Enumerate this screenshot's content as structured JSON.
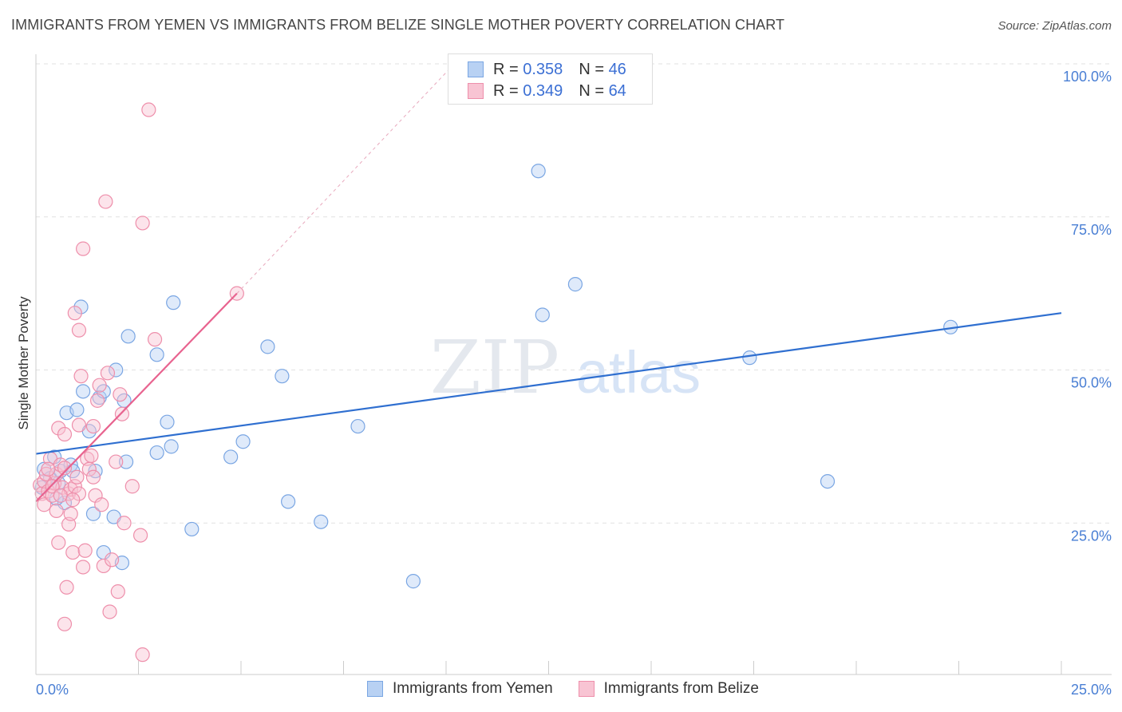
{
  "title": "IMMIGRANTS FROM YEMEN VS IMMIGRANTS FROM BELIZE SINGLE MOTHER POVERTY CORRELATION CHART",
  "source": "Source: ZipAtlas.com",
  "watermark": {
    "zip": "ZIP",
    "atlas": "atlas"
  },
  "legend": {
    "r_label": "R =",
    "n_label": "N =",
    "rows": [
      {
        "r": "0.358",
        "n": "46",
        "fill": "#b8d1f3",
        "stroke": "#7aa6e3"
      },
      {
        "r": "0.349",
        "n": "64",
        "fill": "#f8c4d3",
        "stroke": "#ee8fab"
      }
    ]
  },
  "bottom_legend": [
    {
      "label": "Immigrants from Yemen",
      "fill": "#b8d1f3",
      "stroke": "#7aa6e3"
    },
    {
      "label": "Immigrants from Belize",
      "fill": "#f8c4d3",
      "stroke": "#ee8fab"
    }
  ],
  "chart_data": {
    "type": "scatter",
    "title": "IMMIGRANTS FROM YEMEN VS IMMIGRANTS FROM BELIZE SINGLE MOTHER POVERTY CORRELATION CHART",
    "xlabel": "",
    "ylabel": "Single Mother Poverty",
    "xlim": [
      0,
      25
    ],
    "ylim": [
      0,
      100
    ],
    "x_tick_labels": [
      "0.0%",
      "25.0%"
    ],
    "y_tick_labels": [
      "25.0%",
      "50.0%",
      "75.0%",
      "100.0%"
    ],
    "y_tick_values": [
      25,
      50,
      75,
      100
    ],
    "colors": {
      "yemen": "#2f6fd0",
      "belize": "#e8638f",
      "axis_label": "#4a7fd4"
    },
    "series": [
      {
        "name": "Immigrants from Yemen",
        "color": "#7aa6e3",
        "fill": "#b8d1f3",
        "trend": {
          "x": [
            0,
            25
          ],
          "y": [
            36.3,
            59.3
          ],
          "color": "#2f6fd0"
        },
        "points": [
          [
            0.2,
            33.8
          ],
          [
            0.35,
            32.3
          ],
          [
            0.45,
            35.8
          ],
          [
            0.55,
            31.5
          ],
          [
            0.6,
            33.5
          ],
          [
            0.7,
            28.3
          ],
          [
            0.75,
            43.0
          ],
          [
            0.85,
            34.5
          ],
          [
            0.9,
            33.5
          ],
          [
            1.0,
            43.5
          ],
          [
            1.1,
            60.3
          ],
          [
            1.15,
            46.5
          ],
          [
            1.3,
            40.0
          ],
          [
            1.4,
            26.5
          ],
          [
            1.45,
            33.5
          ],
          [
            1.55,
            45.5
          ],
          [
            1.65,
            46.5
          ],
          [
            1.65,
            20.2
          ],
          [
            1.9,
            26.0
          ],
          [
            1.95,
            50.0
          ],
          [
            2.1,
            18.5
          ],
          [
            2.15,
            45.0
          ],
          [
            2.2,
            35.0
          ],
          [
            2.25,
            55.5
          ],
          [
            2.95,
            52.5
          ],
          [
            2.95,
            36.5
          ],
          [
            3.2,
            41.5
          ],
          [
            3.3,
            37.5
          ],
          [
            3.35,
            61.0
          ],
          [
            3.8,
            24.0
          ],
          [
            4.75,
            35.8
          ],
          [
            5.05,
            38.3
          ],
          [
            5.65,
            53.8
          ],
          [
            6.0,
            49.0
          ],
          [
            6.15,
            28.5
          ],
          [
            6.95,
            25.2
          ],
          [
            7.85,
            40.8
          ],
          [
            9.2,
            15.5
          ],
          [
            12.25,
            82.5
          ],
          [
            12.35,
            59.0
          ],
          [
            13.15,
            64.0
          ],
          [
            17.4,
            52.0
          ],
          [
            19.3,
            31.8
          ],
          [
            22.3,
            57.0
          ],
          [
            0.15,
            30.8
          ],
          [
            0.5,
            29.0
          ]
        ]
      },
      {
        "name": "Immigrants from Belize",
        "color": "#ee8fab",
        "fill": "#f8c4d3",
        "trend": {
          "x": [
            0,
            4.9
          ],
          "y": [
            28.5,
            62.5
          ],
          "color": "#e8638f"
        },
        "trend_dash": {
          "x": [
            4.9,
            10.2
          ],
          "y": [
            62.5,
            100.0
          ]
        },
        "points": [
          [
            0.1,
            31.2
          ],
          [
            0.15,
            29.8
          ],
          [
            0.2,
            31.8
          ],
          [
            0.2,
            28.0
          ],
          [
            0.25,
            33.0
          ],
          [
            0.3,
            30.2
          ],
          [
            0.35,
            35.5
          ],
          [
            0.4,
            29.5
          ],
          [
            0.45,
            31.5
          ],
          [
            0.5,
            33.0
          ],
          [
            0.5,
            27.0
          ],
          [
            0.55,
            21.8
          ],
          [
            0.55,
            40.5
          ],
          [
            0.6,
            34.5
          ],
          [
            0.65,
            30.8
          ],
          [
            0.7,
            39.5
          ],
          [
            0.7,
            34.0
          ],
          [
            0.7,
            8.5
          ],
          [
            0.75,
            14.5
          ],
          [
            0.8,
            29.8
          ],
          [
            0.8,
            24.8
          ],
          [
            0.85,
            26.5
          ],
          [
            0.85,
            30.5
          ],
          [
            0.9,
            20.2
          ],
          [
            0.95,
            59.3
          ],
          [
            0.95,
            31.0
          ],
          [
            1.0,
            32.5
          ],
          [
            1.05,
            56.5
          ],
          [
            1.05,
            41.0
          ],
          [
            1.1,
            49.0
          ],
          [
            1.15,
            69.8
          ],
          [
            1.15,
            17.8
          ],
          [
            1.2,
            20.5
          ],
          [
            1.25,
            35.5
          ],
          [
            1.3,
            33.8
          ],
          [
            1.35,
            36.0
          ],
          [
            1.4,
            40.8
          ],
          [
            1.45,
            29.5
          ],
          [
            1.5,
            45.0
          ],
          [
            1.55,
            47.5
          ],
          [
            1.6,
            28.0
          ],
          [
            1.65,
            18.0
          ],
          [
            1.7,
            77.5
          ],
          [
            1.75,
            49.5
          ],
          [
            1.8,
            10.5
          ],
          [
            1.85,
            19.0
          ],
          [
            1.95,
            35.0
          ],
          [
            2.0,
            13.8
          ],
          [
            2.05,
            46.0
          ],
          [
            2.1,
            42.8
          ],
          [
            2.15,
            25.0
          ],
          [
            2.35,
            31.0
          ],
          [
            2.6,
            74.0
          ],
          [
            2.6,
            3.5
          ],
          [
            2.55,
            23.0
          ],
          [
            2.75,
            92.5
          ],
          [
            2.9,
            55.0
          ],
          [
            4.9,
            62.5
          ],
          [
            0.3,
            33.8
          ],
          [
            0.4,
            31.0
          ],
          [
            1.05,
            29.8
          ],
          [
            1.4,
            32.5
          ],
          [
            0.6,
            29.5
          ],
          [
            0.9,
            28.8
          ]
        ]
      }
    ]
  }
}
